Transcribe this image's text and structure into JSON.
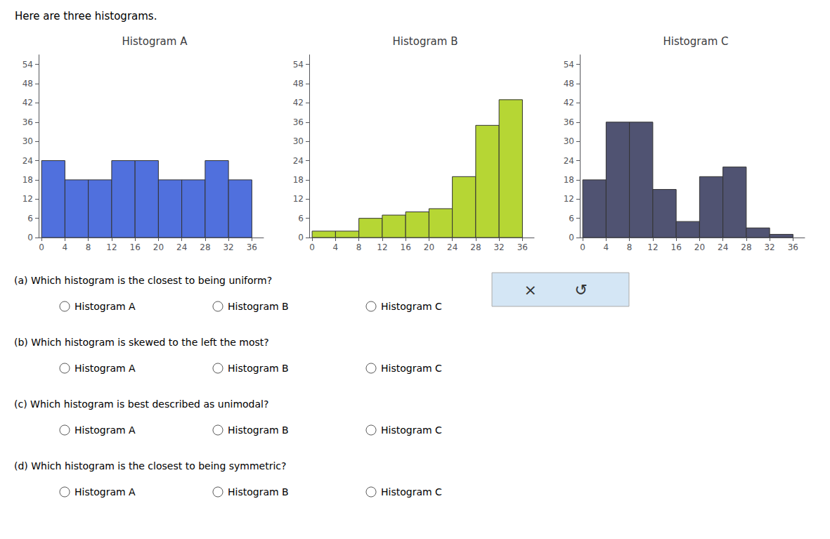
{
  "title": "Here are three histograms.",
  "chart_data": [
    {
      "type": "histogram",
      "title": "Histogram A",
      "bins": [
        0,
        4,
        8,
        12,
        16,
        20,
        24,
        28,
        32,
        36
      ],
      "values": [
        24,
        18,
        18,
        24,
        24,
        18,
        18,
        24,
        18
      ],
      "xlim": [
        -0.5,
        38
      ],
      "xticks": [
        0,
        4,
        8,
        12,
        16,
        20,
        24,
        28,
        32,
        36
      ],
      "ylim": [
        0,
        57
      ],
      "yticks": [
        0,
        6,
        12,
        18,
        24,
        30,
        36,
        42,
        48,
        54
      ],
      "grid": false
    },
    {
      "type": "histogram",
      "title": "Histogram B",
      "bins": [
        0,
        4,
        8,
        12,
        16,
        20,
        24,
        28,
        32,
        36
      ],
      "values": [
        2,
        2,
        6,
        7,
        8,
        9,
        19,
        35,
        43
      ],
      "xlim": [
        -0.5,
        38
      ],
      "xticks": [
        0,
        4,
        8,
        12,
        16,
        20,
        24,
        28,
        32,
        36
      ],
      "ylim": [
        0,
        57
      ],
      "yticks": [
        0,
        6,
        12,
        18,
        24,
        30,
        36,
        42,
        48,
        54
      ],
      "grid": false
    },
    {
      "type": "histogram",
      "title": "Histogram C",
      "bins": [
        0,
        4,
        8,
        12,
        16,
        20,
        24,
        28,
        32,
        36
      ],
      "values": [
        18,
        36,
        36,
        15,
        5,
        19,
        22,
        3,
        1
      ],
      "xlim": [
        -0.5,
        38
      ],
      "xticks": [
        0,
        4,
        8,
        12,
        16,
        20,
        24,
        28,
        32,
        36
      ],
      "ylim": [
        0,
        57
      ],
      "yticks": [
        0,
        6,
        12,
        18,
        24,
        30,
        36,
        42,
        48,
        54
      ],
      "grid": false
    }
  ],
  "annotations": [
    {
      "text": "(a) Which histogram is the closest to being uniform?",
      "options": [
        "Histogram A",
        "Histogram B",
        "Histogram C"
      ]
    },
    {
      "text": "(b) Which histogram is skewed to the left the most?",
      "options": [
        "Histogram A",
        "Histogram B",
        "Histogram C"
      ]
    },
    {
      "text": "(c) Which histogram is best described as unimodal?",
      "options": [
        "Histogram A",
        "Histogram B",
        "Histogram C"
      ]
    },
    {
      "text": "(d) Which histogram is the closest to being symmetric?",
      "options": [
        "Histogram A",
        "Histogram B",
        "Histogram C"
      ]
    },
    {
      "text": "×"
    },
    {
      "text": "↺"
    }
  ]
}
